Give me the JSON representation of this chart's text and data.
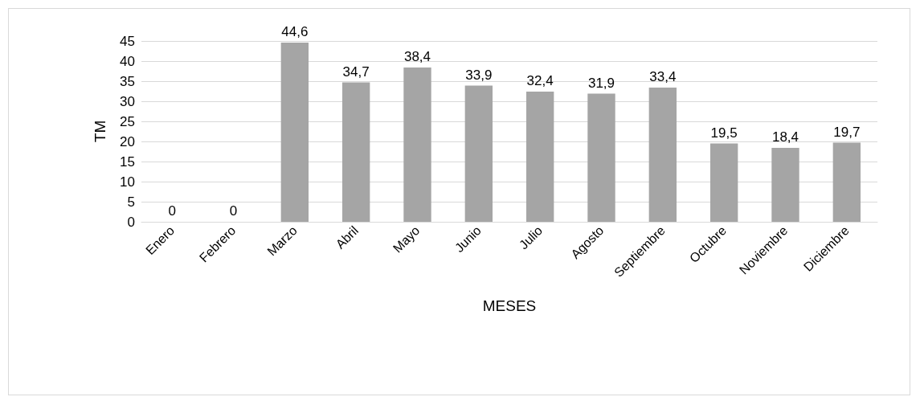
{
  "chart_data": {
    "type": "bar",
    "xlabel": "MESES",
    "ylabel": "TM",
    "categories": [
      "Enero",
      "Febrero",
      "Marzo",
      "Abril",
      "Mayo",
      "Junio",
      "Julio",
      "Agosto",
      "Septiembre",
      "Octubre",
      "Noviembre",
      "Diciembre"
    ],
    "values": [
      0,
      0,
      44.6,
      34.7,
      38.4,
      33.9,
      32.4,
      31.9,
      33.4,
      19.5,
      18.4,
      19.7
    ],
    "value_labels": [
      "0",
      "0",
      "44,6",
      "34,7",
      "38,4",
      "33,9",
      "32,4",
      "31,9",
      "33,4",
      "19,5",
      "18,4",
      "19,7"
    ],
    "color": "#a5a5a5",
    "ylim": [
      0,
      45
    ],
    "yticks": [
      0,
      5,
      10,
      15,
      20,
      25,
      30,
      35,
      40,
      45
    ],
    "grid": "y"
  }
}
